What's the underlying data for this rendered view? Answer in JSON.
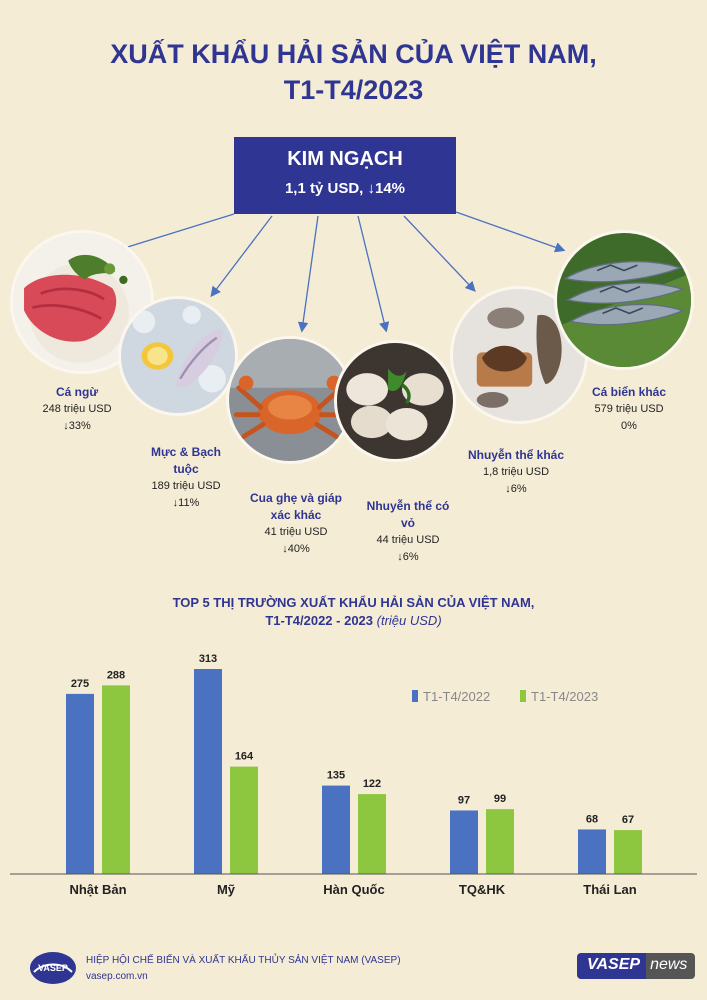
{
  "title": {
    "line1": "XUẤT KHẨU HẢI SẢN CỦA VIỆT NAM,",
    "line2": "T1-T4/2023"
  },
  "summary": {
    "label": "KIM NGẠCH",
    "value": "1,1 tỷ USD, ↓14%"
  },
  "categories": [
    {
      "name": "Cá ngừ",
      "value": "248 triệu USD",
      "change": "↓33%"
    },
    {
      "name_line1": "Mực & Bạch",
      "name_line2": "tuộc",
      "value": "189 triệu USD",
      "change": "↓11%"
    },
    {
      "name_line1": "Cua ghẹ và giáp",
      "name_line2": "xác khác",
      "value": "41 triệu USD",
      "change": "↓40%"
    },
    {
      "name_line1": "Nhuyễn thể có",
      "name_line2": "vỏ",
      "value": "44 triệu USD",
      "change": "↓6%"
    },
    {
      "name": "Nhuyễn thể khác",
      "value": "1,8 triệu USD",
      "change": "↓6%"
    },
    {
      "name": "Cá biển khác",
      "value": "579 triệu USD",
      "change": "0%"
    }
  ],
  "chart_title": {
    "line1": "TOP 5 THỊ TRƯỜNG XUẤT KHẨU HẢI SẢN CỦA VIỆT NAM,",
    "line2": "T1-T4/2022 - 2023",
    "unit": "(triệu USD)"
  },
  "chart_data": {
    "type": "bar",
    "categories": [
      "Nhật Bản",
      "Mỹ",
      "Hàn Quốc",
      "TQ&HK",
      "Thái Lan"
    ],
    "series": [
      {
        "name": "T1-T4/2022",
        "values": [
          275,
          313,
          135,
          97,
          68
        ],
        "color": "#4a72c0"
      },
      {
        "name": "T1-T4/2023",
        "values": [
          288,
          164,
          122,
          99,
          67
        ],
        "color": "#8dc63f"
      }
    ],
    "ylim": [
      0,
      313
    ],
    "legend": "top-right",
    "grid": false
  },
  "footer": {
    "org": "HIỆP HỘI CHẾ BIẾN VÀ XUẤT KHẨU THỦY SẢN VIỆT NAM (VASEP)",
    "url": "vasep.com.vn",
    "logo_text": "VASEP",
    "badge_a": "VASEP",
    "badge_b": "news"
  }
}
